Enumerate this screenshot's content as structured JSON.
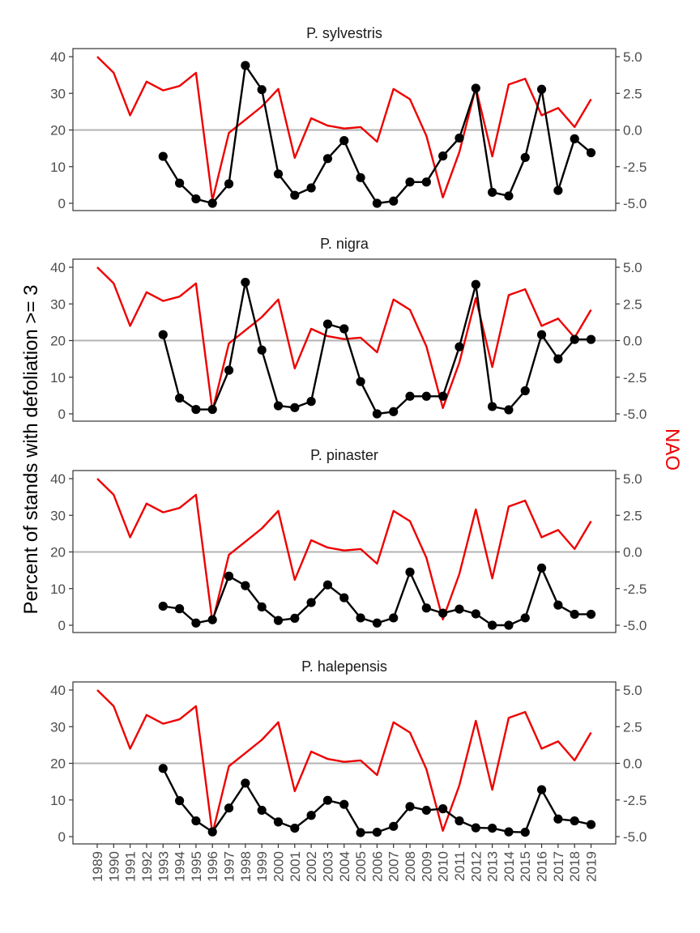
{
  "chart_data": {
    "type": "line",
    "ylabel": "Percent of stands with defoliation >= 3",
    "y2label": "NAO",
    "ylim": [
      0,
      40
    ],
    "y2lim": [
      -5,
      5
    ],
    "yticks": [
      "0",
      "10",
      "20",
      "30",
      "40"
    ],
    "y2ticks": [
      "-5.0",
      "-2.5",
      "0.0",
      "2.5",
      "5.0"
    ],
    "x": [
      1989,
      1990,
      1991,
      1992,
      1993,
      1994,
      1995,
      1996,
      1997,
      1998,
      1999,
      2000,
      2001,
      2002,
      2003,
      2004,
      2005,
      2006,
      2007,
      2008,
      2009,
      2010,
      2011,
      2012,
      2013,
      2014,
      2015,
      2016,
      2017,
      2018,
      2019
    ],
    "x_labels": [
      "1989",
      "1990",
      "1991",
      "1992",
      "1993",
      "1994",
      "1995",
      "1996",
      "1997",
      "1998",
      "1999",
      "2000",
      "2001",
      "2002",
      "2003",
      "2004",
      "2005",
      "2006",
      "2007",
      "2008",
      "2009",
      "2010",
      "2011",
      "2012",
      "2013",
      "2014",
      "2015",
      "2016",
      "2017",
      "2018",
      "2019"
    ],
    "nao": [
      5.0,
      3.9,
      1.0,
      3.3,
      2.7,
      3.0,
      3.9,
      -4.8,
      -0.2,
      0.7,
      1.6,
      2.8,
      -1.9,
      0.8,
      0.3,
      0.1,
      0.2,
      -0.8,
      2.8,
      2.1,
      -0.4,
      -4.6,
      -1.5,
      2.9,
      -1.8,
      3.1,
      3.5,
      1.0,
      1.5,
      0.2,
      2.1
    ],
    "reference_line": 0.0,
    "colors": {
      "defoliation": "#000000",
      "nao": "#ee0000",
      "reference": "#b3b3b3"
    },
    "panels": [
      {
        "title": "P. sylvestris",
        "values": [
          null,
          null,
          null,
          null,
          12.8,
          5.5,
          1.2,
          0.0,
          5.3,
          37.6,
          31.0,
          8.0,
          2.2,
          4.2,
          12.2,
          17.1,
          7.0,
          0.0,
          0.6,
          5.8,
          5.8,
          12.9,
          17.8,
          31.4,
          3.0,
          2.0,
          12.5,
          31.1,
          3.5,
          17.6,
          13.8
        ]
      },
      {
        "title": "P. nigra",
        "values": [
          null,
          null,
          null,
          null,
          21.6,
          4.3,
          1.2,
          1.2,
          11.9,
          35.9,
          17.4,
          2.2,
          1.7,
          3.4,
          24.5,
          23.2,
          8.8,
          0.0,
          0.6,
          4.8,
          4.8,
          4.8,
          18.3,
          35.3,
          2.0,
          1.1,
          6.3,
          21.6,
          15.0,
          20.3,
          20.3
        ]
      },
      {
        "title": "P. pinaster",
        "values": [
          null,
          null,
          null,
          null,
          5.2,
          4.5,
          0.6,
          1.5,
          13.4,
          10.8,
          5.0,
          1.3,
          1.9,
          6.2,
          11.0,
          7.5,
          2.0,
          0.6,
          2.0,
          14.5,
          4.7,
          3.3,
          4.4,
          3.1,
          0.0,
          0.0,
          2.0,
          15.6,
          5.5,
          3.0,
          3.0
        ]
      },
      {
        "title": "P. halepensis",
        "values": [
          null,
          null,
          null,
          null,
          18.6,
          9.8,
          4.3,
          1.3,
          7.8,
          14.6,
          7.2,
          4.0,
          2.3,
          5.8,
          9.9,
          8.8,
          1.1,
          1.2,
          2.8,
          8.2,
          7.2,
          7.6,
          4.3,
          2.4,
          2.3,
          1.3,
          1.2,
          12.8,
          4.8,
          4.3,
          3.3
        ]
      }
    ]
  }
}
